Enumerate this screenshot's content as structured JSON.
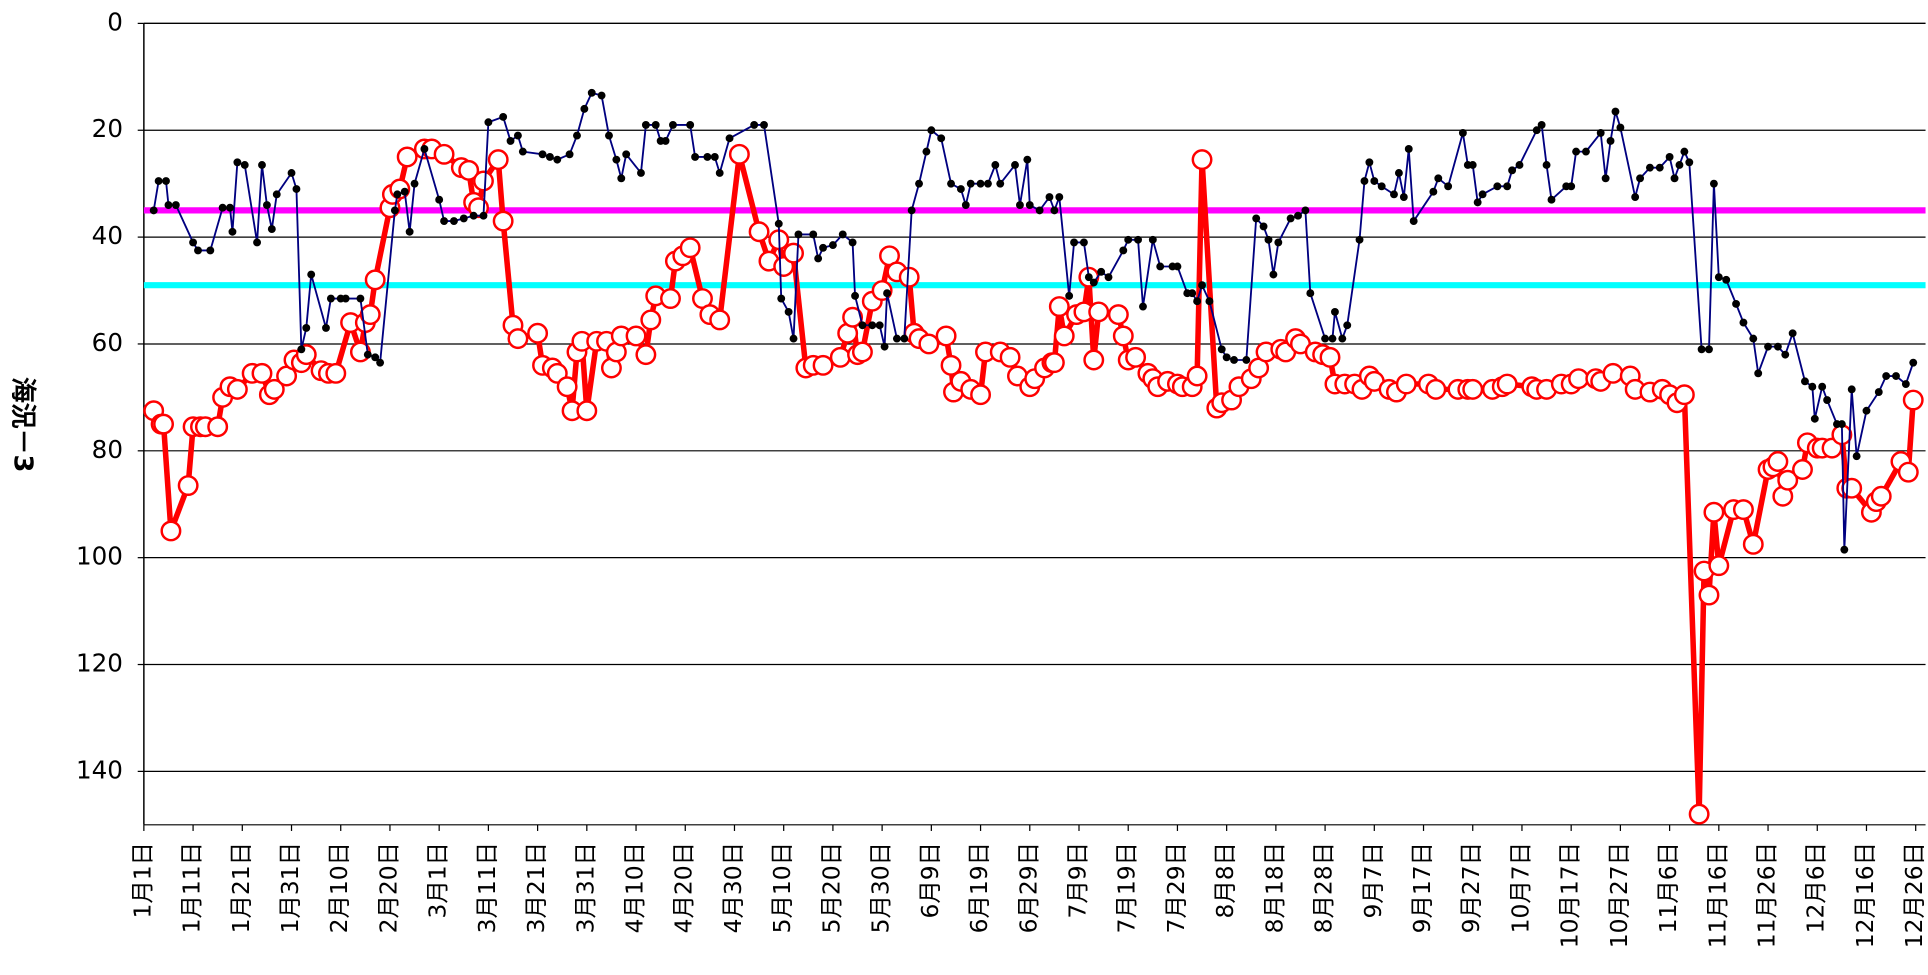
{
  "chart_data": {
    "type": "line",
    "y_label": "海況－3",
    "xlim": [
      0,
      362
    ],
    "xticks": [
      {
        "value": 0,
        "label": "1月1日"
      },
      {
        "value": 10,
        "label": "1月11日"
      },
      {
        "value": 20,
        "label": "1月21日"
      },
      {
        "value": 30,
        "label": "1月31日"
      },
      {
        "value": 40,
        "label": "2月10日"
      },
      {
        "value": 50,
        "label": "2月20日"
      },
      {
        "value": 60,
        "label": "3月1日"
      },
      {
        "value": 70,
        "label": "3月11日"
      },
      {
        "value": 80,
        "label": "3月21日"
      },
      {
        "value": 90,
        "label": "3月31日"
      },
      {
        "value": 100,
        "label": "4月10日"
      },
      {
        "value": 110,
        "label": "4月20日"
      },
      {
        "value": 120,
        "label": "4月30日"
      },
      {
        "value": 130,
        "label": "5月10日"
      },
      {
        "value": 140,
        "label": "5月20日"
      },
      {
        "value": 150,
        "label": "5月30日"
      },
      {
        "value": 160,
        "label": "6月9日"
      },
      {
        "value": 170,
        "label": "6月19日"
      },
      {
        "value": 180,
        "label": "6月29日"
      },
      {
        "value": 190,
        "label": "7月9日"
      },
      {
        "value": 200,
        "label": "7月19日"
      },
      {
        "value": 210,
        "label": "7月29日"
      },
      {
        "value": 220,
        "label": "8月8日"
      },
      {
        "value": 230,
        "label": "8月18日"
      },
      {
        "value": 240,
        "label": "8月28日"
      },
      {
        "value": 250,
        "label": "9月7日"
      },
      {
        "value": 260,
        "label": "9月17日"
      },
      {
        "value": 270,
        "label": "9月27日"
      },
      {
        "value": 280,
        "label": "10月7日"
      },
      {
        "value": 290,
        "label": "10月17日"
      },
      {
        "value": 300,
        "label": "10月27日"
      },
      {
        "value": 310,
        "label": "11月6日"
      },
      {
        "value": 320,
        "label": "11月16日"
      },
      {
        "value": 330,
        "label": "11月26日"
      },
      {
        "value": 340,
        "label": "12月6日"
      },
      {
        "value": 350,
        "label": "12月16日"
      },
      {
        "value": 360,
        "label": "12月26日"
      }
    ],
    "ylim": [
      0,
      150
    ],
    "yticks": [
      0,
      20,
      40,
      60,
      80,
      100,
      120,
      140
    ],
    "y_inverted": true,
    "grid": true,
    "reference_lines": [
      {
        "value": 35,
        "color": "#ff00ff"
      },
      {
        "value": 49,
        "color": "#00ffff"
      }
    ],
    "series": [
      {
        "color": "#ff0000",
        "marker": "hollow",
        "x": [
          2,
          3.5,
          4,
          5.5,
          9,
          10,
          11.5,
          12.5,
          15,
          16,
          17.5,
          19,
          22,
          24,
          25.5,
          26.5,
          29,
          30.5,
          32,
          33,
          36,
          37.5,
          39,
          42,
          44,
          45,
          46,
          47,
          50,
          50.5,
          52,
          53.5,
          57,
          58.5,
          61,
          64.5,
          66,
          67,
          68,
          69,
          72,
          73,
          75,
          76,
          80,
          81,
          83,
          84,
          86,
          87,
          88,
          89,
          90,
          92,
          94,
          95,
          96,
          97,
          100,
          102,
          103,
          104,
          107,
          108,
          109.5,
          111,
          113.5,
          115,
          117,
          121,
          125,
          127,
          129,
          130,
          132,
          134.5,
          136,
          138,
          141.5,
          143,
          144,
          145,
          146,
          148,
          150,
          151.5,
          153,
          155.5,
          156.5,
          157.5,
          159.5,
          163,
          164,
          164.5,
          166,
          168,
          170,
          171,
          174,
          176,
          177.5,
          180,
          181,
          183,
          184.5,
          185,
          186,
          187,
          189.5,
          191,
          192,
          193,
          194,
          198,
          199,
          200,
          201.5,
          204,
          205,
          206,
          208,
          210,
          211,
          213,
          214,
          215,
          218,
          219,
          221,
          222.5,
          225,
          226.5,
          228,
          231,
          232,
          234,
          235,
          238,
          239.5,
          241,
          242,
          244,
          246,
          247.5,
          249,
          250,
          253,
          254.5,
          256.5,
          261,
          262.5,
          267,
          269,
          270,
          274,
          276,
          277,
          282,
          283,
          285,
          288,
          290,
          291.5,
          295,
          296,
          298.5,
          302,
          303,
          306,
          308.5,
          310,
          311.5,
          313,
          316,
          317,
          318,
          319,
          320,
          323,
          325,
          327,
          330,
          331,
          332,
          333,
          334,
          337,
          338,
          340,
          341,
          343,
          345,
          346,
          347,
          351,
          352,
          353,
          357,
          358.5,
          359.5
        ],
        "values": [
          72.5,
          75,
          75,
          95,
          86.5,
          75.5,
          75.5,
          75.5,
          75.5,
          70,
          68,
          68.5,
          65.5,
          65.5,
          69.5,
          68.5,
          66,
          63,
          63.5,
          62,
          65,
          65.5,
          65.5,
          56,
          61.5,
          56,
          54.5,
          48,
          34.5,
          32,
          31,
          25,
          23.5,
          23.5,
          24.5,
          27,
          27.5,
          33.5,
          34.5,
          29.5,
          25.5,
          37,
          56.5,
          59,
          58,
          64,
          64.5,
          65.5,
          68,
          72.5,
          61.5,
          59.5,
          72.5,
          59.5,
          59.5,
          64.5,
          61.5,
          58.5,
          58.5,
          62,
          55.5,
          51,
          51.5,
          44.5,
          43.5,
          42,
          51.5,
          54.5,
          55.5,
          24.5,
          39,
          44.5,
          40.5,
          45.5,
          43,
          64.5,
          64,
          64,
          62.5,
          58,
          55,
          62,
          61.5,
          52,
          50,
          43.5,
          46.5,
          47.5,
          58,
          59,
          60,
          58.5,
          64,
          69,
          67,
          68.5,
          69.5,
          61.5,
          61.5,
          62.5,
          66,
          68,
          66.5,
          64.5,
          63.5,
          63.5,
          53,
          58.5,
          54.5,
          54,
          47.5,
          63,
          54,
          54.5,
          58.5,
          63,
          62.5,
          65.5,
          66.5,
          68,
          67,
          67.5,
          68,
          68,
          66,
          25.5,
          72,
          71,
          70.5,
          68,
          66.5,
          64.5,
          61.5,
          61,
          61.5,
          59,
          60,
          61.5,
          62,
          62.5,
          67.5,
          67.5,
          67.5,
          68.5,
          66,
          67,
          68.5,
          69,
          67.5,
          67.5,
          68.5,
          68.5,
          68.5,
          68.5,
          68.5,
          68,
          67.5,
          68,
          68.5,
          68.5,
          67.5,
          67.5,
          66.5,
          66.5,
          67,
          65.5,
          66,
          68.5,
          69,
          68.5,
          69.5,
          71,
          69.5,
          148,
          102.5,
          107,
          91.5,
          101.5,
          91,
          91,
          97.5,
          83.5,
          83,
          82,
          88.5,
          85.5,
          83.5,
          78.5,
          79.5,
          79.5,
          79.5,
          77,
          87,
          87,
          91.5,
          89.5,
          88.5,
          82,
          84,
          70.5
        ]
      },
      {
        "color": "#000080",
        "marker": "filled",
        "x": [
          2,
          3,
          4.5,
          5,
          6.5,
          10,
          11,
          13.5,
          16,
          17.5,
          18,
          19,
          20.5,
          23,
          24,
          25,
          26,
          27,
          30,
          31,
          32,
          33,
          34,
          37,
          38,
          40,
          41,
          44,
          45.5,
          47,
          48,
          51,
          51.5,
          53,
          54,
          55,
          57,
          60,
          61,
          63,
          65,
          67,
          69,
          70,
          73,
          74.5,
          76,
          77,
          81,
          82.5,
          84,
          86.5,
          88,
          89.5,
          91,
          93,
          94.5,
          96,
          97,
          98,
          101,
          102,
          104,
          105,
          106,
          107.5,
          111,
          112,
          114.5,
          116,
          117,
          119,
          124,
          126,
          129,
          129.5,
          131,
          132,
          133,
          136,
          137,
          138,
          140,
          142,
          144,
          144.5,
          146,
          148,
          149.5,
          150.5,
          151,
          153,
          154.5,
          156,
          157.5,
          159,
          160,
          162,
          164,
          166,
          167,
          168,
          170,
          171.5,
          173,
          174,
          177,
          178,
          179.5,
          180,
          182,
          184,
          185,
          186,
          188,
          189,
          191,
          192,
          193,
          194.5,
          196,
          199,
          200,
          202,
          203,
          205,
          206.5,
          209,
          210,
          212,
          213,
          214,
          215,
          216.5,
          219,
          220,
          221.5,
          224,
          226,
          227.5,
          228.5,
          229.5,
          230.5,
          233,
          234.5,
          236,
          237,
          240,
          241.5,
          242,
          243.5,
          244.5,
          247,
          248,
          249,
          250,
          251.5,
          254,
          255,
          256,
          257,
          258,
          262,
          263,
          265,
          268,
          269,
          270,
          271,
          272,
          275,
          277,
          278,
          279.5,
          283,
          284,
          285,
          286,
          289,
          290,
          291,
          293,
          296,
          297,
          298,
          299,
          300,
          303,
          304,
          306,
          308,
          310,
          311,
          312,
          313,
          314,
          316.5,
          318,
          319,
          320,
          321.5,
          323.5,
          325,
          327,
          328,
          330,
          332,
          333.5,
          335,
          337.5,
          339,
          339.5,
          341,
          342,
          344,
          345,
          345.5,
          347,
          348,
          350,
          352.5,
          354,
          356,
          358,
          359.5
        ],
        "values": [
          35,
          29.5,
          29.5,
          34,
          34,
          41,
          42.5,
          42.5,
          34.5,
          34.5,
          39,
          26,
          26.5,
          41,
          26.5,
          34,
          38.5,
          32,
          28,
          31,
          61,
          57,
          47,
          57,
          51.5,
          51.5,
          51.5,
          51.5,
          62,
          62.5,
          63.5,
          35,
          32,
          31.5,
          39,
          30,
          23.5,
          33,
          37,
          37,
          36.5,
          36,
          36,
          18.5,
          17.5,
          22,
          21,
          24,
          24.5,
          25,
          25.5,
          24.5,
          21,
          16,
          13,
          13.5,
          21,
          25.5,
          29,
          24.5,
          28,
          19,
          19,
          22,
          22,
          19,
          19,
          25,
          25,
          25,
          28,
          21.5,
          19,
          19,
          37.5,
          51.5,
          54,
          59,
          39.5,
          39.5,
          44,
          42,
          41.5,
          39.5,
          41,
          51,
          56.5,
          56.5,
          56.5,
          60.5,
          50.5,
          59,
          59,
          35,
          30,
          24,
          20,
          21.5,
          30,
          31,
          34,
          30,
          30,
          30,
          26.5,
          30,
          26.5,
          34,
          25.5,
          34,
          35,
          32.5,
          35,
          32.5,
          51,
          41,
          41,
          47.5,
          48.5,
          46.5,
          47.5,
          42.5,
          40.5,
          40.5,
          53,
          40.5,
          45.5,
          45.5,
          45.5,
          50.5,
          50.5,
          52,
          49,
          52,
          61,
          62.5,
          63,
          63,
          36.5,
          38,
          40.5,
          47,
          41,
          36.5,
          36,
          35,
          50.5,
          59,
          59,
          54,
          59,
          56.5,
          40.5,
          29.5,
          26,
          29.5,
          30.5,
          32,
          28,
          32.5,
          23.5,
          37,
          31.5,
          29,
          30.5,
          20.5,
          26.5,
          26.5,
          33.5,
          32,
          30.5,
          30.5,
          27.5,
          26.5,
          20,
          19,
          26.5,
          33,
          30.5,
          30.5,
          24,
          24,
          20.5,
          29,
          22,
          16.5,
          19.5,
          32.5,
          29,
          27,
          27,
          25,
          29,
          26.5,
          24,
          26,
          61,
          61,
          30,
          47.5,
          48,
          52.5,
          56,
          59,
          65.5,
          60.5,
          60.5,
          62,
          58,
          67,
          68,
          74,
          68,
          70.5,
          75,
          75,
          98.5,
          68.5,
          81,
          72.5,
          69,
          66,
          66,
          67.5,
          63.5
        ]
      }
    ]
  }
}
